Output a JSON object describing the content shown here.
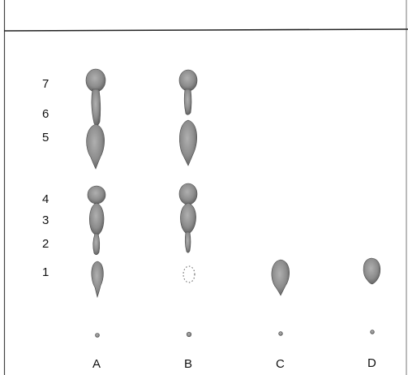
{
  "spot_numbers": [
    "7",
    "6",
    "5",
    "4",
    "3",
    "2",
    "1"
  ],
  "lanes": [
    "A",
    "B",
    "C",
    "D"
  ],
  "colors": {
    "spot_fill": "#8a8a8a",
    "spot_edge": "#4a4a4a",
    "frame": "#333333",
    "background": "#ffffff"
  }
}
